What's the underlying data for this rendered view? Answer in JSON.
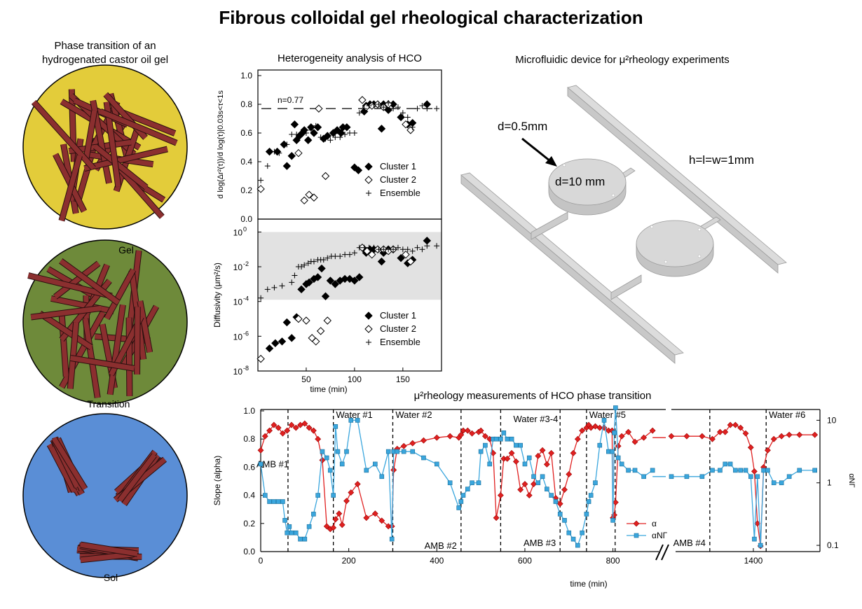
{
  "title": "Fibrous colloidal gel rheological characterization",
  "phase_panel": {
    "title_line1": "Phase transition of an",
    "title_line2": "hydrogenated castor oil gel",
    "states": [
      {
        "label": "Gel",
        "color": "#e3cc3a"
      },
      {
        "label": "Transition",
        "color": "#6e8a3a"
      },
      {
        "label": "Sol",
        "color": "#5a8ed6"
      }
    ],
    "fiber_color": "#8b2f2f"
  },
  "device_panel": {
    "title": "Microfluidic device for μ²rheology experiments",
    "label_d_small": "d=0.5mm",
    "label_d_large": "d=10 mm",
    "label_dims": "h=l=w=1mm"
  },
  "chart_data": [
    {
      "id": "slope",
      "type": "scatter",
      "title": "Heterogeneity analysis of HCO",
      "ylabel": "d log(Δr²(τ))/d log(τ)|0.03s<τ<1s",
      "ylim": [
        0,
        1.0
      ],
      "yticks": [
        "0.0",
        "0.2",
        "0.4",
        "0.6",
        "0.8",
        "1.0"
      ],
      "annotation": "n=0.77",
      "reference_line": 0.77,
      "series": [
        {
          "name": "Cluster 1",
          "marker": "filled-diamond",
          "x": [
            12,
            20,
            27,
            30,
            35,
            38,
            40,
            43,
            46,
            48,
            52,
            55,
            58,
            62,
            68,
            72,
            78,
            82,
            86,
            88,
            92,
            100,
            104,
            110,
            112,
            116,
            120,
            128,
            130,
            135,
            140,
            148,
            155,
            160,
            175
          ],
          "y": [
            0.47,
            0.47,
            0.52,
            0.37,
            0.44,
            0.66,
            0.55,
            0.58,
            0.6,
            0.62,
            0.55,
            0.64,
            0.6,
            0.64,
            0.56,
            0.58,
            0.6,
            0.62,
            0.6,
            0.64,
            0.64,
            0.36,
            0.34,
            0.75,
            0.79,
            0.8,
            0.8,
            0.63,
            0.8,
            0.76,
            0.8,
            0.71,
            0.66,
            0.67,
            0.8
          ]
        },
        {
          "name": "Cluster 2",
          "marker": "open-diamond",
          "x": [
            3,
            42,
            48,
            53,
            58,
            63,
            70,
            108,
            112,
            118,
            124,
            130,
            135,
            153,
            158
          ],
          "y": [
            0.21,
            0.46,
            0.13,
            0.17,
            0.15,
            0.77,
            0.3,
            0.83,
            0.78,
            0.79,
            0.8,
            0.78,
            0.8,
            0.66,
            0.62
          ]
        },
        {
          "name": "Ensemble",
          "marker": "plus",
          "x": [
            3,
            10,
            17,
            22,
            30,
            35,
            40,
            45,
            50,
            55,
            60,
            65,
            70,
            75,
            80,
            85,
            90,
            95,
            100,
            105,
            110,
            115,
            120,
            125,
            130,
            135,
            140,
            145,
            150,
            155,
            160,
            165,
            170,
            175,
            185
          ],
          "y": [
            0.27,
            0.37,
            0.47,
            0.46,
            0.52,
            0.59,
            0.59,
            0.59,
            0.6,
            0.62,
            0.65,
            0.57,
            0.56,
            0.55,
            0.57,
            0.57,
            0.59,
            0.6,
            0.6,
            0.74,
            0.77,
            0.79,
            0.8,
            0.8,
            0.78,
            0.81,
            0.77,
            0.78,
            0.74,
            0.71,
            0.64,
            0.77,
            0.79,
            0.77,
            0.77
          ]
        }
      ]
    },
    {
      "id": "diffusivity",
      "type": "scatter",
      "ylabel": "Diffusivity (μm²/s)",
      "xlabel": "time (min)",
      "xlim": [
        0,
        190
      ],
      "xticks": [
        "50",
        "100",
        "150"
      ],
      "ylim_log10": [
        -8,
        0.5
      ],
      "yticks_base": "10",
      "yticks_exp": [
        "-8",
        "-6",
        "-4",
        "-2",
        "0"
      ],
      "shaded_band_log10": [
        -3.9,
        0
      ],
      "series": [
        {
          "name": "Cluster 1",
          "marker": "filled-diamond",
          "x": [
            12,
            18,
            25,
            30,
            35,
            40,
            45,
            50,
            53,
            58,
            62,
            66,
            70,
            75,
            80,
            85,
            90,
            95,
            100,
            105,
            110,
            112,
            116,
            120,
            128,
            130,
            135,
            140,
            148,
            155,
            160,
            175
          ],
          "y": [
            -6.7,
            -6.4,
            -6.3,
            -5.2,
            -6.1,
            -4.9,
            -3.3,
            -3.0,
            -2.9,
            -2.7,
            -2.6,
            -2.1,
            -3.7,
            -2.8,
            -3.0,
            -2.8,
            -2.7,
            -2.7,
            -2.8,
            -2.6,
            -1.0,
            -1.2,
            -1.0,
            -1.0,
            -1.7,
            -1.2,
            -1.0,
            -1.0,
            -1.5,
            -1.8,
            -1.6,
            -0.5
          ]
        },
        {
          "name": "Cluster 2",
          "marker": "open-diamond",
          "x": [
            3,
            42,
            50,
            56,
            60,
            65,
            72,
            108,
            113,
            118,
            124,
            130,
            135,
            140,
            153,
            158
          ],
          "y": [
            -7.3,
            -5.0,
            -5.1,
            -6.1,
            -6.3,
            -5.7,
            -5.1,
            -0.9,
            -1.1,
            -1.3,
            -1.0,
            -1.0,
            -1.1,
            -1.0,
            -1.3,
            -1.7
          ]
        },
        {
          "name": "Ensemble",
          "marker": "plus",
          "x": [
            3,
            10,
            17,
            25,
            35,
            38,
            42,
            45,
            48,
            52,
            55,
            58,
            62,
            65,
            68,
            72,
            76,
            80,
            85,
            90,
            95,
            100,
            105,
            110,
            115,
            120,
            125,
            130,
            135,
            140,
            145,
            150,
            155,
            160,
            165,
            170,
            175,
            185
          ],
          "y": [
            -3.8,
            -3.3,
            -3.2,
            -3.1,
            -2.9,
            -2.5,
            -2.0,
            -2.0,
            -1.9,
            -1.8,
            -1.7,
            -1.7,
            -1.6,
            -1.6,
            -1.6,
            -1.5,
            -1.4,
            -1.4,
            -1.4,
            -1.3,
            -1.3,
            -1.2,
            -0.9,
            -0.9,
            -0.9,
            -0.9,
            -1.0,
            -1.0,
            -1.0,
            -1.0,
            -0.9,
            -1.0,
            -1.0,
            -1.1,
            -0.9,
            -1.0,
            -0.8,
            -0.8
          ]
        }
      ]
    },
    {
      "id": "timeseries",
      "type": "line",
      "title": "μ²rheology measurements of HCO phase transition",
      "xlabel": "time (min)",
      "ylabel": "Slope (alpha)",
      "ylabel_right": "αNΓ",
      "ylim": [
        0,
        1.0
      ],
      "yticks": [
        "0.0",
        "0.2",
        "0.4",
        "0.6",
        "0.8",
        "1.0"
      ],
      "yticks_right": [
        "10",
        "1",
        "0.1"
      ],
      "y2_log10_range": [
        -1.1,
        1.15
      ],
      "xticks": [
        "0",
        "200",
        "400",
        "600",
        "800",
        "1400"
      ],
      "x_break": [
        920,
        1240
      ],
      "events": [
        {
          "t": 62,
          "label": "AMB #1"
        },
        {
          "t": 165,
          "label": "Water #1"
        },
        {
          "t": 300,
          "label": "Water #2"
        },
        {
          "t": 455,
          "label": "AMB #2"
        },
        {
          "t": 545,
          "label": "Water #3-4"
        },
        {
          "t": 680,
          "label": "AMB #3"
        },
        {
          "t": 740,
          "label": "Water #5"
        },
        {
          "t": 805,
          "label": ""
        },
        {
          "t": 1315,
          "label": "AMB #4"
        },
        {
          "t": 1425,
          "label": "Water #6"
        }
      ],
      "series": [
        {
          "name": "α",
          "color": "#e02020",
          "marker": "diamond",
          "segments": [
            {
              "x": [
                0,
                10,
                20,
                30,
                40,
                50,
                60,
                70,
                80,
                90,
                100,
                110,
                120,
                130,
                140,
                150,
                158,
                165,
                170,
                178,
                185,
                195,
                205,
                220,
                240,
                260,
                275,
                290,
                298,
                302,
                310,
                325,
                345,
                370,
                400,
                430,
                450,
                455,
                460,
                470,
                480,
                495,
                500,
                510,
                520,
                528,
                535,
                545,
                552,
                560,
                570,
                580,
                590,
                600,
                610,
                620,
                630,
                640,
                650,
                660,
                670,
                680,
                690,
                700,
                710,
                720,
                730,
                740,
                745,
                750,
                760,
                770,
                780,
                790,
                798,
                800,
                803,
                806,
                812,
                820,
                835,
                850,
                870,
                890
              ],
              "y": [
                0.72,
                0.82,
                0.86,
                0.9,
                0.88,
                0.84,
                0.86,
                0.9,
                0.88,
                0.9,
                0.91,
                0.88,
                0.86,
                0.8,
                0.65,
                0.18,
                0.16,
                0.17,
                0.23,
                0.27,
                0.19,
                0.36,
                0.42,
                0.48,
                0.24,
                0.27,
                0.22,
                0.18,
                0.18,
                0.58,
                0.73,
                0.75,
                0.77,
                0.79,
                0.81,
                0.82,
                0.81,
                0.83,
                0.86,
                0.86,
                0.84,
                0.85,
                0.86,
                0.82,
                0.8,
                0.7,
                0.24,
                0.4,
                0.66,
                0.66,
                0.7,
                0.64,
                0.44,
                0.48,
                0.4,
                0.48,
                0.68,
                0.72,
                0.62,
                0.7,
                0.38,
                0.34,
                0.44,
                0.55,
                0.7,
                0.8,
                0.86,
                0.88,
                0.9,
                0.88,
                0.89,
                0.88,
                0.88,
                0.86,
                0.86,
                0.24,
                0.26,
                0.35,
                0.75,
                0.82,
                0.85,
                0.78,
                0.81,
                0.86
              ]
            },
            {
              "x": [
                1240,
                1270,
                1300,
                1320,
                1335,
                1345,
                1355,
                1365,
                1375,
                1385,
                1395,
                1402,
                1408,
                1414,
                1420,
                1428,
                1440,
                1455,
                1470,
                1490,
                1520
              ],
              "y": [
                0.82,
                0.82,
                0.82,
                0.8,
                0.85,
                0.85,
                0.9,
                0.9,
                0.88,
                0.84,
                0.74,
                0.57,
                0.2,
                0.04,
                0.6,
                0.72,
                0.8,
                0.82,
                0.83,
                0.83,
                0.83
              ]
            }
          ]
        },
        {
          "name": "αNΓ",
          "color": "#3aa6dd",
          "marker": "square",
          "segments": [
            {
              "x": [
                0,
                10,
                20,
                30,
                40,
                50,
                55,
                60,
                65,
                70,
                80,
                90,
                100,
                110,
                120,
                130,
                140,
                150,
                158,
                165,
                170,
                175,
                185,
                195,
                205,
                220,
                240,
                260,
                275,
                290,
                298,
                302,
                310,
                325,
                345,
                370,
                400,
                430,
                450,
                455,
                460,
                470,
                480,
                495,
                500,
                510,
                520,
                528,
                535,
                545,
                552,
                560,
                570,
                580,
                590,
                600,
                610,
                620,
                630,
                640,
                650,
                660,
                670,
                680,
                690,
                700,
                710,
                720,
                730,
                740,
                745,
                750,
                760,
                770,
                780,
                790,
                798,
                800,
                803,
                806,
                812,
                820,
                835,
                850,
                870,
                890
              ],
              "y_log10": [
                0.3,
                -0.2,
                -0.3,
                -0.3,
                -0.3,
                -0.3,
                -0.6,
                -0.8,
                -0.7,
                -0.8,
                -0.8,
                -0.9,
                -0.9,
                -0.7,
                -0.5,
                -0.2,
                0.5,
                0.4,
                0.2,
                -0.2,
                0.9,
                0.5,
                0.3,
                0.5,
                1.0,
                1.0,
                0.2,
                0.3,
                0.1,
                0.5,
                -0.9,
                0.5,
                0.5,
                0.5,
                0.5,
                0.4,
                0.3,
                0.0,
                -0.4,
                -0.3,
                -0.2,
                -0.1,
                0.0,
                0.0,
                0.5,
                0.6,
                0.3,
                0.7,
                0.7,
                0.7,
                0.8,
                0.7,
                0.7,
                0.6,
                0.6,
                0.3,
                0.4,
                0.1,
                0.0,
                0.1,
                -0.1,
                -0.2,
                -0.3,
                -0.5,
                -0.6,
                -0.8,
                -0.9,
                -1.0,
                -0.8,
                -0.5,
                -0.3,
                -0.2,
                0.0,
                0.6,
                1.0,
                0.5,
                0.5,
                -0.6,
                0.8,
                1.2,
                0.4,
                0.3,
                0.2,
                0.2,
                0.1,
                0.2
              ]
            },
            {
              "x": [
                1240,
                1270,
                1300,
                1320,
                1335,
                1345,
                1355,
                1365,
                1375,
                1385,
                1395,
                1402,
                1408,
                1414,
                1420,
                1428,
                1440,
                1455,
                1470,
                1490,
                1520
              ],
              "y_log10": [
                0.1,
                0.1,
                0.1,
                0.2,
                0.2,
                0.3,
                0.3,
                0.2,
                0.2,
                0.2,
                0.1,
                -0.9,
                0.1,
                -1.0,
                0.2,
                0.2,
                0.0,
                0.0,
                0.1,
                0.2,
                0.2
              ]
            }
          ]
        }
      ],
      "legend": [
        {
          "name": "α",
          "color": "#e02020",
          "marker": "diamond"
        },
        {
          "name": "αNΓ",
          "color": "#3aa6dd",
          "marker": "square"
        }
      ]
    }
  ]
}
